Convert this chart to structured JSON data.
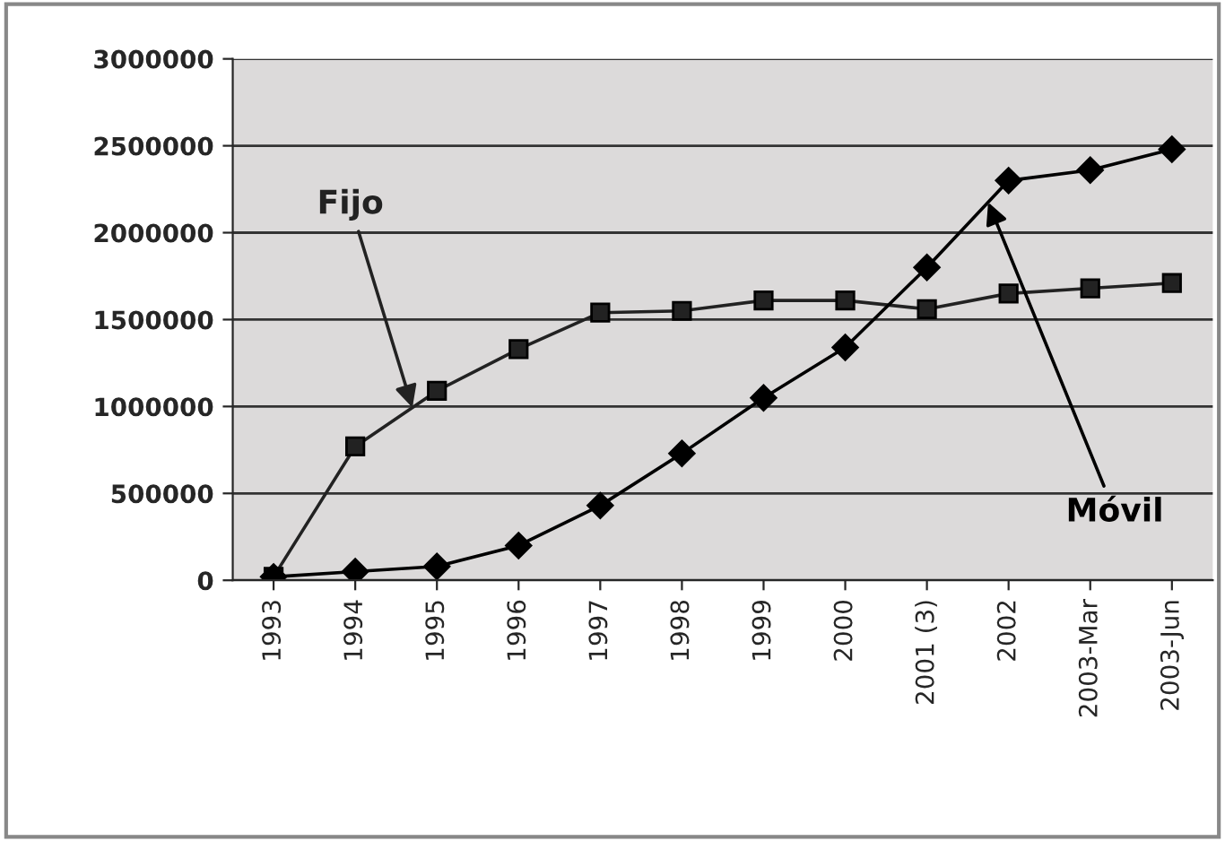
{
  "chart_data": {
    "type": "line",
    "categories": [
      "1993",
      "1994",
      "1995",
      "1996",
      "1997",
      "1998",
      "1999",
      "2000",
      "2001 (3)",
      "2002",
      "2003-Mar",
      "2003-Jun"
    ],
    "series": [
      {
        "name": "Fijo",
        "color": "#222222",
        "marker": "square",
        "values": [
          20000,
          770000,
          1090000,
          1330000,
          1540000,
          1550000,
          1610000,
          1610000,
          1560000,
          1650000,
          1680000,
          1710000
        ]
      },
      {
        "name": "Móvil",
        "color": "#000000",
        "marker": "diamond",
        "values": [
          20000,
          50000,
          80000,
          200000,
          430000,
          730000,
          1050000,
          1340000,
          1800000,
          2300000,
          2360000,
          2480000
        ]
      }
    ],
    "ylim": [
      0,
      3000000
    ],
    "yticks": [
      0,
      500000,
      1000000,
      1500000,
      2000000,
      2500000,
      3000000
    ],
    "grid": "y",
    "legend": false,
    "line_style": "solid"
  }
}
